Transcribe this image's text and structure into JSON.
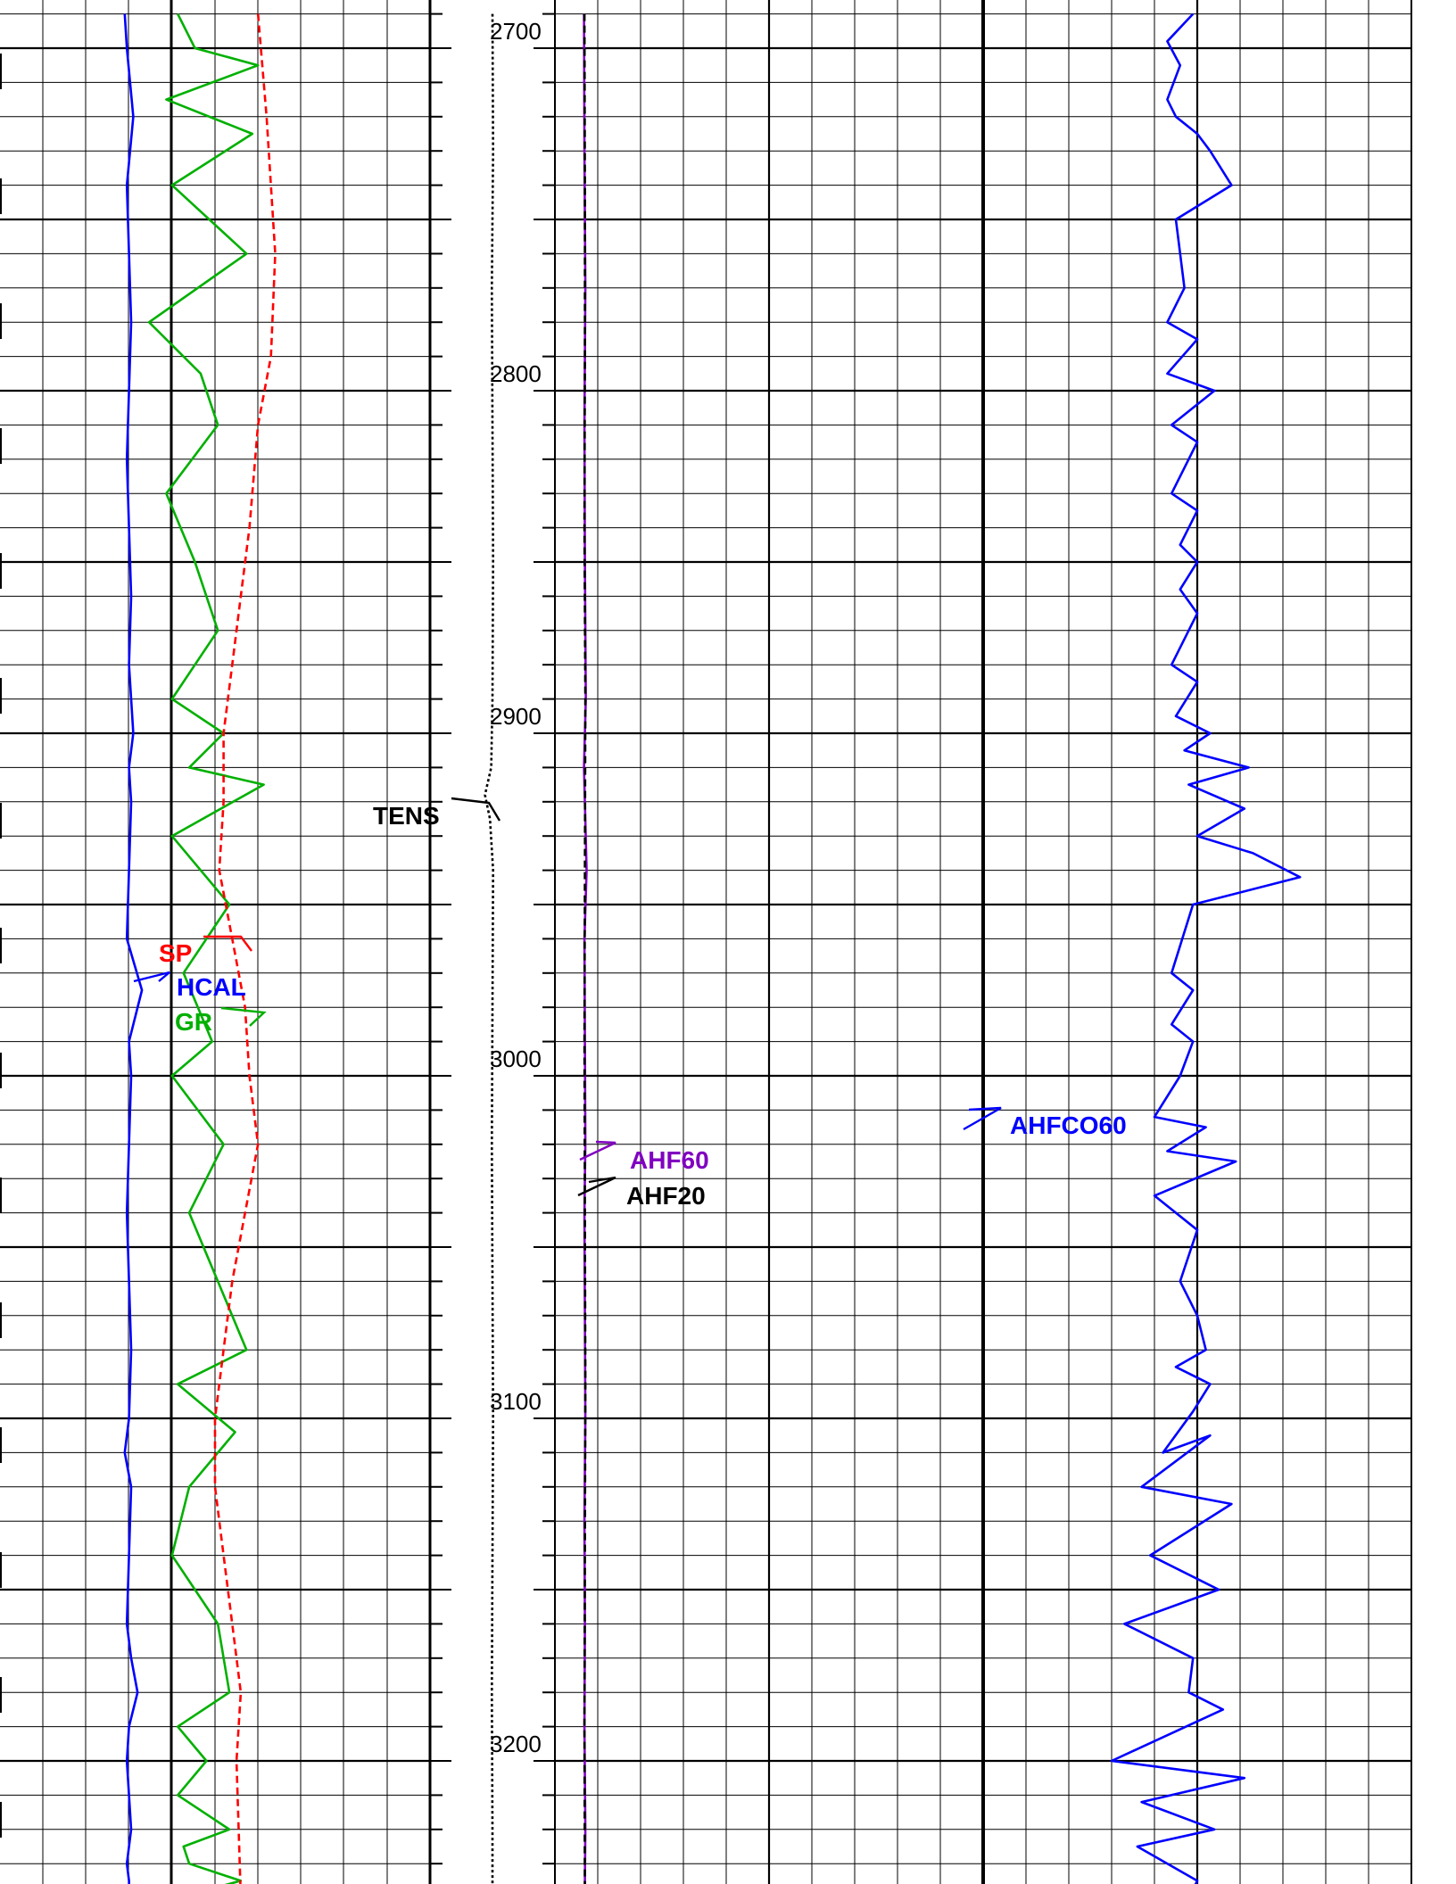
{
  "chart_data": {
    "type": "line",
    "title": "",
    "depth_axis": {
      "range": [
        2690,
        3240
      ],
      "tick_labels": [
        "2700",
        "2800",
        "2900",
        "3000",
        "3100",
        "3200"
      ]
    },
    "colors": {
      "grid": "#000000",
      "HCAL": "#0000ff",
      "GR": "#00b000",
      "SP": "#ff0000",
      "TENS": "#000000",
      "AHF60": "#8000c0",
      "AHF20": "#000000",
      "AHFCO60": "#0000ff"
    },
    "tracks": [
      {
        "name": "track-1",
        "grid": true,
        "series": [
          {
            "name": "HCAL",
            "style": "solid",
            "x_range": [
              0,
              10
            ],
            "x": [
              2.9,
              2.95,
              3.1,
              2.95,
              3.0,
              3.05,
              3.0,
              2.95,
              3.0,
              3.05,
              3.0,
              3.1,
              3.0,
              3.05,
              3.0,
              2.95,
              3.3,
              3.0,
              3.05,
              3.0,
              2.95,
              3.0,
              3.05,
              3.0,
              2.9,
              3.05,
              3.0,
              2.95,
              3.05,
              3.2,
              3.0,
              2.95,
              3.0,
              3.05,
              3.0,
              2.95,
              3.0,
              3.0
            ],
            "depth": [
              2690,
              2700,
              2720,
              2740,
              2760,
              2780,
              2800,
              2820,
              2840,
              2860,
              2880,
              2900,
              2910,
              2920,
              2940,
              2960,
              2975,
              2990,
              3000,
              3020,
              3040,
              3060,
              3080,
              3100,
              3110,
              3120,
              3140,
              3160,
              3170,
              3180,
              3190,
              3200,
              3210,
              3220,
              3225,
              3230,
              3235,
              3240
            ]
          },
          {
            "name": "GR",
            "style": "solid",
            "x_range": [
              0,
              150
            ],
            "x": [
              62,
              68,
              90,
              58,
              88,
              60,
              86,
              52,
              70,
              76,
              58,
              68,
              76,
              60,
              78,
              66,
              92,
              60,
              80,
              64,
              74,
              60,
              78,
              66,
              76,
              86,
              62,
              82,
              66,
              60,
              76,
              80,
              62,
              72,
              62,
              80,
              64,
              66,
              84,
              62
            ],
            "depth": [
              2690,
              2700,
              2705,
              2715,
              2725,
              2740,
              2760,
              2780,
              2795,
              2810,
              2830,
              2850,
              2870,
              2890,
              2900,
              2910,
              2915,
              2930,
              2950,
              2970,
              2990,
              3000,
              3020,
              3040,
              3060,
              3080,
              3090,
              3104,
              3120,
              3140,
              3160,
              3180,
              3190,
              3200,
              3210,
              3220,
              3225,
              3230,
              3235,
              3240
            ]
          },
          {
            "name": "SP",
            "style": "dashed",
            "x_range": [
              0,
              100
            ],
            "x": [
              60,
              62,
              64,
              63,
              60,
              58,
              56,
              54,
              52,
              52,
              51,
              54,
              57,
              58,
              60,
              57,
              54,
              52,
              50,
              50,
              52,
              54,
              56,
              55,
              56
            ],
            "depth": [
              2690,
              2720,
              2760,
              2790,
              2810,
              2840,
              2860,
              2880,
              2900,
              2920,
              2940,
              2960,
              2980,
              3000,
              3020,
              3040,
              3060,
              3080,
              3100,
              3120,
              3140,
              3160,
              3180,
              3200,
              3240
            ]
          }
        ],
        "labels": [
          "SP",
          "HCAL",
          "GR"
        ]
      },
      {
        "name": "depth-track",
        "series": [
          {
            "name": "TENS",
            "style": "dotted",
            "x_range": [
              0,
              100
            ],
            "x": [
              50,
              50.5,
              49.5,
              50,
              50.5,
              50,
              49,
              44,
              48,
              50.5,
              50,
              49.5,
              50,
              50.5,
              50,
              49.5,
              50,
              50
            ],
            "depth": [
              2690,
              2730,
              2770,
              2810,
              2850,
              2890,
              2910,
              2918,
              2925,
              2940,
              2980,
              3020,
              3060,
              3100,
              3140,
              3180,
              3220,
              3240
            ]
          }
        ],
        "labels": [
          "TENS"
        ]
      },
      {
        "name": "track-2",
        "grid": true,
        "series": [
          {
            "name": "AHF60",
            "style": "solid",
            "x_range": [
              0,
              100
            ],
            "x": [
              6.8,
              6.9,
              7.1,
              6.9,
              7.0,
              7.2,
              6.8,
              7.4,
              6.9,
              7.0,
              7.1,
              6.9,
              7.0,
              7.1,
              6.9,
              7.0,
              6.9,
              7.1,
              7.0,
              7.0
            ],
            "depth": [
              2690,
              2730,
              2770,
              2810,
              2850,
              2890,
              2910,
              2940,
              2960,
              2990,
              3020,
              3040,
              3070,
              3100,
              3130,
              3160,
              3190,
              3220,
              3235,
              3240
            ]
          },
          {
            "name": "AHF20",
            "style": "dashed",
            "x_range": [
              0,
              100
            ],
            "x": [
              6.9,
              7.0,
              7.0,
              6.9,
              7.1,
              7.0,
              6.9,
              7.0,
              7.1,
              7.0,
              6.9,
              7.0
            ],
            "depth": [
              2690,
              2740,
              2790,
              2840,
              2890,
              2940,
              2990,
              3040,
              3090,
              3140,
              3190,
              3240
            ]
          }
        ],
        "labels": [
          "AHF60",
          "AHF20"
        ]
      },
      {
        "name": "track-3",
        "grid": true,
        "series": [
          {
            "name": "AHFCO60",
            "style": "solid",
            "x_range": [
              0,
              100
            ],
            "x": [
              49,
              43,
              46,
              43,
              45,
              50,
              53,
              58,
              45,
              47,
              43,
              50,
              43,
              54,
              44,
              50,
              44,
              50,
              46,
              50,
              46,
              50,
              44,
              50,
              45,
              53,
              47,
              62,
              48,
              61,
              50,
              63,
              74,
              49,
              44,
              49,
              44,
              49,
              46,
              40,
              52,
              43,
              59,
              40,
              50,
              46,
              50,
              52,
              45,
              53,
              49,
              42,
              53,
              37,
              58,
              39,
              55,
              33,
              49,
              48,
              56,
              30,
              61,
              37,
              54,
              36,
              50,
              48,
              51,
              60
            ],
            "depth": [
              2690,
              2698,
              2705,
              2715,
              2720,
              2725,
              2730,
              2740,
              2750,
              2770,
              2780,
              2785,
              2795,
              2800,
              2810,
              2815,
              2830,
              2835,
              2845,
              2850,
              2858,
              2865,
              2880,
              2885,
              2895,
              2900,
              2905,
              2910,
              2915,
              2922,
              2930,
              2935,
              2942,
              2950,
              2970,
              2975,
              2985,
              2990,
              3000,
              3012,
              3015,
              3022,
              3025,
              3035,
              3045,
              3060,
              3070,
              3080,
              3085,
              3090,
              3098,
              3110,
              3105,
              3120,
              3125,
              3140,
              3150,
              3160,
              3170,
              3180,
              3185,
              3200,
              3205,
              3212,
              3220,
              3225,
              3235,
              3240,
              3245,
              3250
            ]
          }
        ],
        "labels": [
          "AHFCO60"
        ]
      }
    ]
  }
}
